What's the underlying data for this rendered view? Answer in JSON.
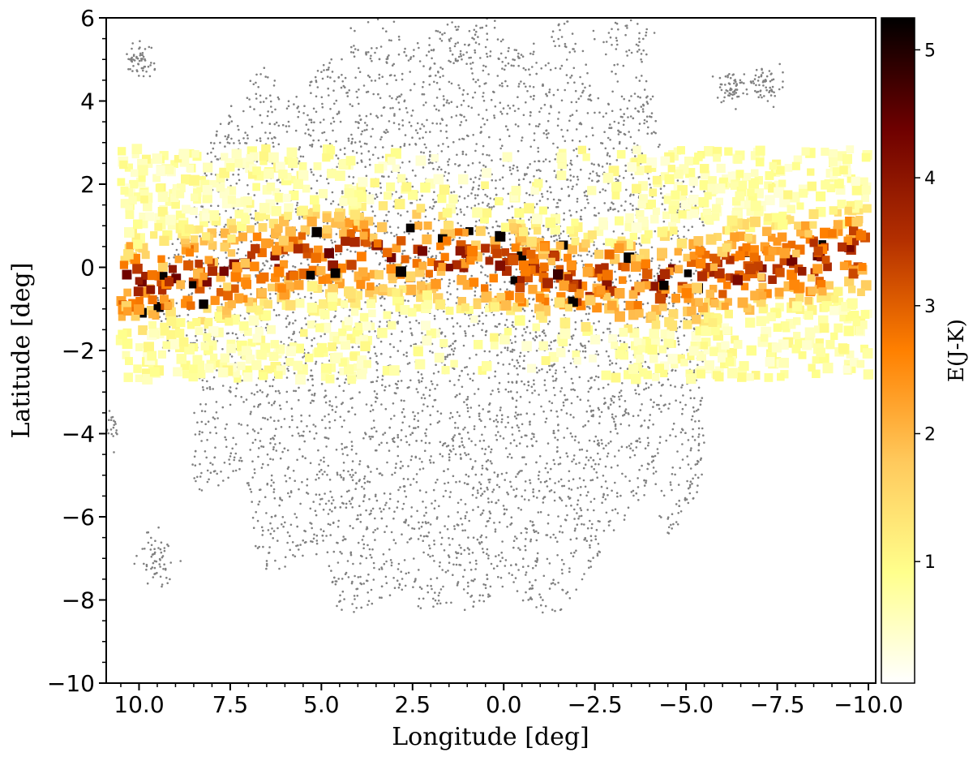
{
  "chart_data": {
    "type": "scatter",
    "xlabel": "Longitude [deg]",
    "ylabel": "Latitude [deg]",
    "xlim": [
      10.9,
      -10.2
    ],
    "ylim": [
      -10,
      6
    ],
    "x_ticks": [
      10.0,
      7.5,
      5.0,
      2.5,
      0.0,
      -2.5,
      -5.0,
      -7.5,
      -10.0
    ],
    "x_tick_labels": [
      "10.0",
      "7.5",
      "5.0",
      "2.5",
      "0.0",
      "−2.5",
      "−5.0",
      "−7.5",
      "−10.0"
    ],
    "y_ticks": [
      6,
      4,
      2,
      0,
      -2,
      -4,
      -6,
      -8,
      -10
    ],
    "y_tick_labels": [
      "6",
      "4",
      "2",
      "0",
      "−2",
      "−4",
      "−6",
      "−8",
      "−10"
    ],
    "grid": false,
    "colorbar": {
      "label": "E(J-K)",
      "range": [
        0.05,
        5.25
      ],
      "ticks": [
        1,
        2,
        3,
        4,
        5
      ],
      "tick_labels": [
        "1",
        "2",
        "3",
        "4",
        "5"
      ],
      "colormap": "afmhot_r",
      "stops": [
        "#ffffff",
        "#ffff8c",
        "#ffc95c",
        "#ff8000",
        "#b32f00",
        "#6e0000",
        "#000000"
      ]
    },
    "series": [
      {
        "kind": "background-points",
        "color": "#808080",
        "marker": "dot",
        "description_regions": [
          {
            "x": [
              -4.5,
              8.5
            ],
            "y": [
              -7.6,
              5.2
            ]
          },
          {
            "x": [
              -2.5,
              5.5
            ],
            "y": [
              -8.2,
              6.0
            ]
          }
        ]
      },
      {
        "kind": "extinction-squares",
        "colored_by": "E(J-K)",
        "marker": "square",
        "extent": {
          "x": [
            -10.0,
            10.5
          ],
          "y": [
            -2.7,
            2.85
          ]
        },
        "high_extinction_band": {
          "center_y": 0.0,
          "half_width": 0.9,
          "peak_value": 5.2
        }
      }
    ]
  }
}
